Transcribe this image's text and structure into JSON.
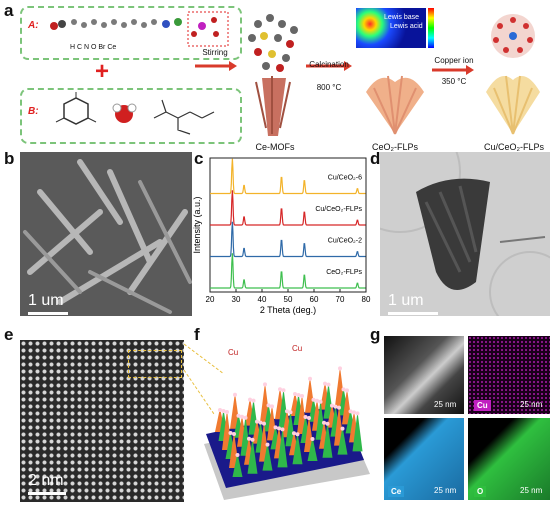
{
  "panels": {
    "a": "a",
    "b": "b",
    "c": "c",
    "d": "d",
    "e": "e",
    "f": "f",
    "g": "g"
  },
  "panel_a": {
    "box_a_label": "A:",
    "legend": "H  C  N  O  Br  Ce",
    "box_b_label": "B:",
    "step1": "Stirring",
    "product1": "Ce-MOFs",
    "step2_line1": "Calcination",
    "step2_line2": "800 °C",
    "product2": "CeO₂-FLPs",
    "lewis_base": "Lewis base",
    "lewis_acid": "Lewis acid",
    "step3_line1": "Copper ion",
    "step3_line2": "350 °C",
    "product3": "Cu/CeO₂-FLPs",
    "colors": {
      "dash_green": "#7cc47a",
      "plus_red": "#e02020",
      "arrow_red": "#d93a2b"
    }
  },
  "panel_b": {
    "scale": "1 um"
  },
  "panel_d": {
    "scale": "1 um"
  },
  "panel_e": {
    "scale": "2 nm"
  },
  "panel_f": {
    "label1": "Cu",
    "label2": "Cu"
  },
  "panel_g": {
    "scale": "25 nm",
    "maps": [
      "Cu",
      "Ce",
      "O"
    ],
    "colors": {
      "Cu": "#c020c0",
      "Ce": "#2a9ad6",
      "O": "#2fbf3f"
    }
  },
  "chart_data": {
    "type": "line",
    "xlabel": "2 Theta (deg.)",
    "ylabel": "Intensity (a.u.)",
    "xlim": [
      20,
      80
    ],
    "x_ticks": [
      20,
      30,
      40,
      50,
      60,
      70,
      80
    ],
    "series": [
      {
        "name": "Cu/CeO₂-6",
        "color": "#f3b32a",
        "peaks": [
          28.6,
          33.1,
          47.5,
          56.3,
          76.7
        ],
        "heights": [
          1.0,
          0.25,
          0.5,
          0.4,
          0.15
        ]
      },
      {
        "name": "Cu/CeO₂-FLPs",
        "color": "#d62728",
        "peaks": [
          28.6,
          33.1,
          47.5,
          56.3,
          76.7
        ],
        "heights": [
          1.0,
          0.25,
          0.5,
          0.4,
          0.15
        ]
      },
      {
        "name": "Cu/CeO₂-2",
        "color": "#2f6aa8",
        "peaks": [
          28.6,
          33.1,
          47.5,
          56.3,
          76.7
        ],
        "heights": [
          1.0,
          0.25,
          0.5,
          0.4,
          0.15
        ]
      },
      {
        "name": "CeO₂-FLPs",
        "color": "#3fbf4f",
        "peaks": [
          28.6,
          33.1,
          47.5,
          56.3,
          76.7
        ],
        "heights": [
          1.0,
          0.25,
          0.5,
          0.4,
          0.15
        ]
      }
    ]
  }
}
